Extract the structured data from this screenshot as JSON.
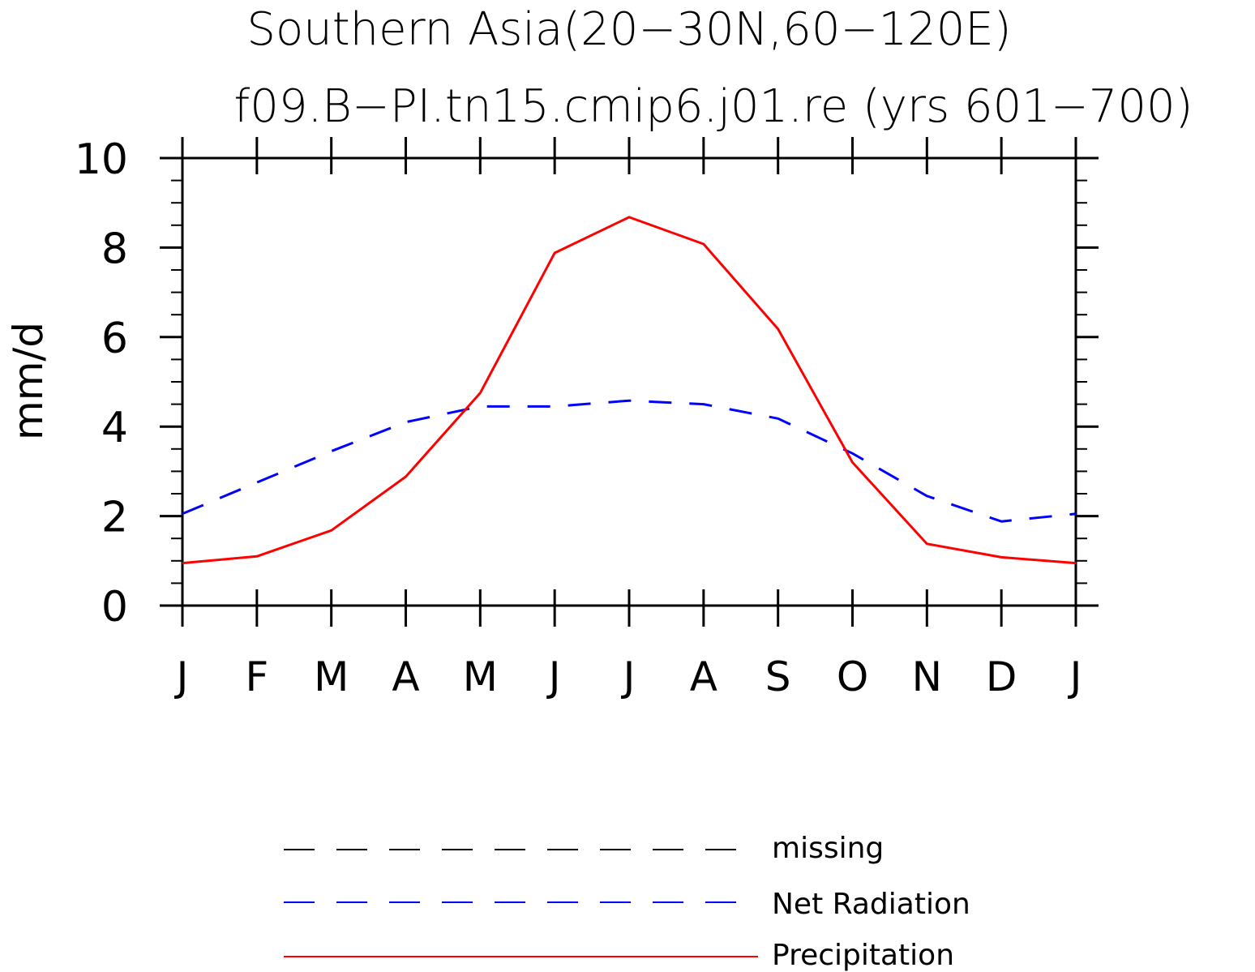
{
  "chart_data": {
    "type": "line",
    "title": "Southern Asia(20−30N,60−120E)",
    "subtitle": "f09.B−PI.tn15.cmip6.j01.re (yrs 601−700)",
    "ylabel": "mm/d",
    "xlabel": "",
    "ylim": [
      0,
      10
    ],
    "yticks": [
      "0",
      "2",
      "4",
      "6",
      "8",
      "10"
    ],
    "categories": [
      "J",
      "F",
      "M",
      "A",
      "M",
      "J",
      "J",
      "A",
      "S",
      "O",
      "N",
      "D",
      "J"
    ],
    "series": [
      {
        "name": "Net Radiation",
        "color": "#0000ff",
        "style": "dashed",
        "values": [
          2.05,
          2.75,
          3.45,
          4.1,
          4.45,
          4.45,
          4.58,
          4.5,
          4.18,
          3.4,
          2.45,
          1.88,
          2.05
        ]
      },
      {
        "name": "Precipitation",
        "color": "#ff0000",
        "style": "solid",
        "values": [
          0.95,
          1.1,
          1.68,
          2.88,
          4.75,
          7.88,
          8.68,
          8.08,
          6.18,
          3.2,
          1.38,
          1.08,
          0.95
        ]
      }
    ],
    "legend": {
      "placement": "bottom",
      "entries": [
        {
          "label": "missing",
          "color": "#000000",
          "style": "dashed"
        },
        {
          "label": "Net Radiation",
          "color": "#0000ff",
          "style": "dashed"
        },
        {
          "label": "Precipitation",
          "color": "#ff0000",
          "style": "solid"
        }
      ]
    },
    "grid": false
  }
}
